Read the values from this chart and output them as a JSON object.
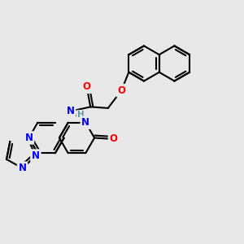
{
  "bg_color": "#e8e8e8",
  "bond_color": "#000000",
  "bond_width": 1.5,
  "atom_colors": {
    "N": "#0000ff",
    "O": "#ff0000",
    "H": "#5f9ea0",
    "C": "#000000"
  },
  "font_size": 8.5,
  "dbl_off": 0.11,
  "fig_width": 3.0,
  "fig_height": 3.0,
  "xlim": [
    0,
    10
  ],
  "ylim": [
    0,
    10
  ]
}
